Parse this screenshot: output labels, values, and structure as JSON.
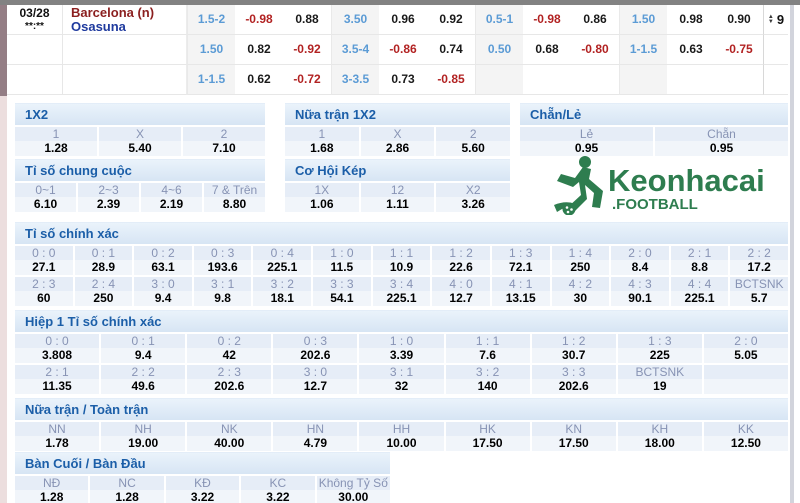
{
  "match": {
    "date": "03/28",
    "time": "**:**",
    "home": "Barcelona (n)",
    "away": "Osasuna",
    "more_count": "9",
    "rows": [
      {
        "cells": [
          {
            "t": "1.5-2",
            "c": "h"
          },
          {
            "t": "-0.98",
            "c": "n"
          },
          {
            "t": "0.88",
            "c": "p"
          },
          {
            "t": "3.50",
            "c": "h"
          },
          {
            "t": "0.96",
            "c": "p"
          },
          {
            "t": "0.92",
            "c": "p"
          },
          {
            "t": "0.5-1",
            "c": "h"
          },
          {
            "t": "-0.98",
            "c": "n"
          },
          {
            "t": "0.86",
            "c": "p"
          },
          {
            "t": "1.50",
            "c": "h"
          },
          {
            "t": "0.98",
            "c": "p"
          },
          {
            "t": "0.90",
            "c": "p"
          }
        ]
      },
      {
        "cells": [
          {
            "t": "1.50",
            "c": "h"
          },
          {
            "t": "0.82",
            "c": "p"
          },
          {
            "t": "-0.92",
            "c": "n"
          },
          {
            "t": "3.5-4",
            "c": "h"
          },
          {
            "t": "-0.86",
            "c": "n"
          },
          {
            "t": "0.74",
            "c": "p"
          },
          {
            "t": "0.50",
            "c": "h"
          },
          {
            "t": "0.68",
            "c": "p"
          },
          {
            "t": "-0.80",
            "c": "n"
          },
          {
            "t": "1-1.5",
            "c": "h"
          },
          {
            "t": "0.63",
            "c": "p"
          },
          {
            "t": "-0.75",
            "c": "n"
          }
        ]
      },
      {
        "cells": [
          {
            "t": "1-1.5",
            "c": "h"
          },
          {
            "t": "0.62",
            "c": "p"
          },
          {
            "t": "-0.72",
            "c": "n"
          },
          {
            "t": "3-3.5",
            "c": "h"
          },
          {
            "t": "0.73",
            "c": "p"
          },
          {
            "t": "-0.85",
            "c": "n"
          },
          {
            "t": "",
            "c": "h"
          },
          {
            "t": "",
            "c": "p"
          },
          {
            "t": "",
            "c": "p"
          },
          {
            "t": "",
            "c": "h"
          },
          {
            "t": "",
            "c": "p"
          },
          {
            "t": "",
            "c": "p"
          }
        ]
      }
    ]
  },
  "sections": {
    "s1x2": {
      "title": "1X2",
      "labels": [
        "1",
        "X",
        "2"
      ],
      "values": [
        "1.28",
        "5.40",
        "7.10"
      ]
    },
    "sht1x2": {
      "title": "Nữa trận 1X2",
      "labels": [
        "1",
        "X",
        "2"
      ],
      "values": [
        "1.68",
        "2.86",
        "5.60"
      ]
    },
    "schanle": {
      "title": "Chẵn/Lẻ",
      "labels": [
        "Lẻ",
        "Chẵn"
      ],
      "values": [
        "0.95",
        "0.95"
      ]
    },
    "schungcuoc": {
      "title": "Tỉ số chung cuộc",
      "labels": [
        "0~1",
        "2~3",
        "4~6",
        "7 & Trên"
      ],
      "values": [
        "6.10",
        "2.39",
        "2.19",
        "8.80"
      ]
    },
    "skep": {
      "title": "Cơ Hội Kép",
      "labels": [
        "1X",
        "12",
        "X2"
      ],
      "values": [
        "1.06",
        "1.11",
        "3.26"
      ]
    },
    "sexact": {
      "title": "Tỉ số chính xác",
      "row1": {
        "labels": [
          "0 : 0",
          "0 : 1",
          "0 : 2",
          "0 : 3",
          "0 : 4",
          "1 : 0",
          "1 : 1",
          "1 : 2",
          "1 : 3",
          "1 : 4",
          "2 : 0",
          "2 : 1",
          "2 : 2"
        ],
        "values": [
          "27.1",
          "28.9",
          "63.1",
          "193.6",
          "225.1",
          "11.5",
          "10.9",
          "22.6",
          "72.1",
          "250",
          "8.4",
          "8.8",
          "17.2"
        ]
      },
      "row2": {
        "labels": [
          "2 : 3",
          "2 : 4",
          "3 : 0",
          "3 : 1",
          "3 : 2",
          "3 : 3",
          "3 : 4",
          "4 : 0",
          "4 : 1",
          "4 : 2",
          "4 : 3",
          "4 : 4",
          "BCTSNK"
        ],
        "values": [
          "60",
          "250",
          "9.4",
          "9.8",
          "18.1",
          "54.1",
          "225.1",
          "12.7",
          "13.15",
          "30",
          "90.1",
          "225.1",
          "5.7"
        ]
      }
    },
    "shalf": {
      "title": "Hiệp 1 Tỉ số chính xác",
      "row1": {
        "labels": [
          "0 : 0",
          "0 : 1",
          "0 : 2",
          "0 : 3",
          "1 : 0",
          "1 : 1",
          "1 : 2",
          "1 : 3",
          "2 : 0"
        ],
        "values": [
          "3.808",
          "9.4",
          "42",
          "202.6",
          "3.39",
          "7.6",
          "30.7",
          "225",
          "5.05"
        ]
      },
      "row2": {
        "labels": [
          "2 : 1",
          "2 : 2",
          "2 : 3",
          "3 : 0",
          "3 : 1",
          "3 : 2",
          "3 : 3",
          "BCTSNK",
          ""
        ],
        "values": [
          "11.35",
          "49.6",
          "202.6",
          "12.7",
          "32",
          "140",
          "202.6",
          "19",
          ""
        ]
      }
    },
    "shtft": {
      "title": "Nữa trận / Toàn trận",
      "labels": [
        "NN",
        "NH",
        "NK",
        "HN",
        "HH",
        "HK",
        "KN",
        "KH",
        "KK"
      ],
      "values": [
        "1.78",
        "19.00",
        "40.00",
        "4.79",
        "10.00",
        "17.50",
        "17.50",
        "18.00",
        "12.50"
      ]
    },
    "sgoal": {
      "title": "Bàn Cuối / Bàn Đầu",
      "labels": [
        "NĐ",
        "NC",
        "KĐ",
        "KC",
        "Không Tỷ Số"
      ],
      "values": [
        "1.28",
        "1.28",
        "3.22",
        "3.22",
        "30.00"
      ]
    }
  },
  "logo": {
    "brand": "Keonhacai",
    "sub": ".FOOTBALL"
  },
  "colors": {
    "handicap_blue": "#5b9bd5",
    "negative_red": "#b22222",
    "positive_black": "#1a1a1a",
    "home_team_red": "#8b1f1f",
    "away_team_blue": "#1f3a9e",
    "section_title_blue": "#1b5ea8",
    "label_slate": "#8793b4",
    "logo_green": "#2e7d4f"
  }
}
